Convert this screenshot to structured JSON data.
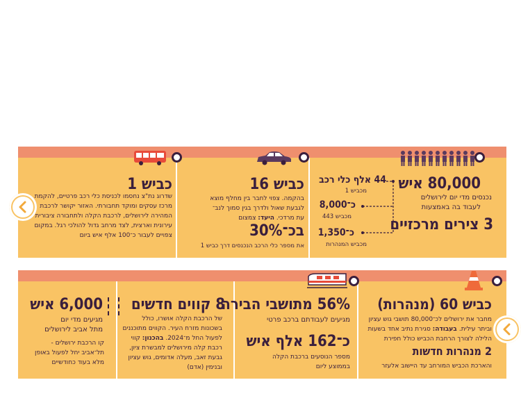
{
  "colors": {
    "band": "#ef8f6e",
    "panel": "#f9c364",
    "ink": "#3a1f3d",
    "white": "#ffffff"
  },
  "top": {
    "col_left": {
      "title": "כביש 1",
      "body": "שדרוג נת\"צ נחסמו לכניסת כלי רכב פרטיים, להקמת מרכז עסקים ומוקד תחבורתי. האזור יקושר לרכבת המהירה לירושלים, לרכבת הקלה ולתחבורה ציבורית עירונית וארצית, לצד מרחב גדול להולכי רגל. במקום צפויים לעבור כ־100 אלף איש ביום"
    },
    "col_mid": {
      "title": "כביש 16",
      "body_lines": [
        "בהקמה. צפוי לחבר בין מחלף מוצא",
        "לגבעת שאול ולדרך בגין סמוך לנב־"
      ],
      "body_last_plain": "עת מרדכי. ",
      "body_last_bold": "היעד:",
      "body_last_end": " צמצום",
      "pct": "בכ־30%",
      "pct_note": "את מספר כלי הרכב הנכנסים דרך כביש 1"
    },
    "col_right": {
      "big": "80,000 איש",
      "sub1": "נכנסים מדי יום לירושלים",
      "sub2": "לעבוד בה באמצעות",
      "big2": "3 צירים מרכזיים",
      "stat1": "44 אלף כלי רכב",
      "stat1_note": "מכביש 1",
      "stat2": "כ־8,000",
      "stat2_note": "מכביש 443",
      "stat3": "כ־1,350",
      "stat3_note": "מכביש המנהרות"
    }
  },
  "bottom": {
    "col_1": {
      "big": "6,000 איש",
      "sub1": "מגיעים מדי יום",
      "sub2": "מתל אביב לירושלים",
      "body": "קו הרכבת ירושלים - תל־אביב יחל לפעול באופן מלא בעוד כחודשיים"
    },
    "col_2": {
      "big": "8 קווים חדשים",
      "body1": "של הרכבת הקלה אושרו, כולל בשכונות מזרח העיר. הקווים מתוכננים לפעול החל מ־2024.",
      "body2_bold": "בהכנון:",
      "body2": " קווי רכבת קלה מירושלים למבשרת ציון, גבעת זאב, מעלה אדומים, גוש עציון ובנימין (אדם)"
    },
    "col_3": {
      "big": "56% מתושבי הבירה",
      "sub": "מגיעים לעבודתם ברכב פרטי",
      "big2": "כ־162 אלף איש",
      "body": "מספר הנוסעים ברכבת הקלה בממוצע ליום"
    },
    "col_4": {
      "big": "כביש 60 (מנהרות)",
      "body1": "מחבר את ירושלים לכ־80,000 תושבי גוש עציון וביתר עילית.",
      "body1_bold": " בעבודה:",
      "body1_end": " סגירת נתיב אחד בשעות הלילה לצורך הרחבת הכביש כולל חפירת",
      "big2": "2 מנהרות חדשות",
      "body2": "והארכת הכביש המורחב עד היישוב אלעזר"
    }
  },
  "icons": {
    "bus": "bus-icon",
    "car": "car-icon",
    "people": "people-icon",
    "train": "train-icon",
    "cone": "traffic-cone-icon",
    "prev": "chevron-left-icon",
    "next": "chevron-left-icon"
  }
}
